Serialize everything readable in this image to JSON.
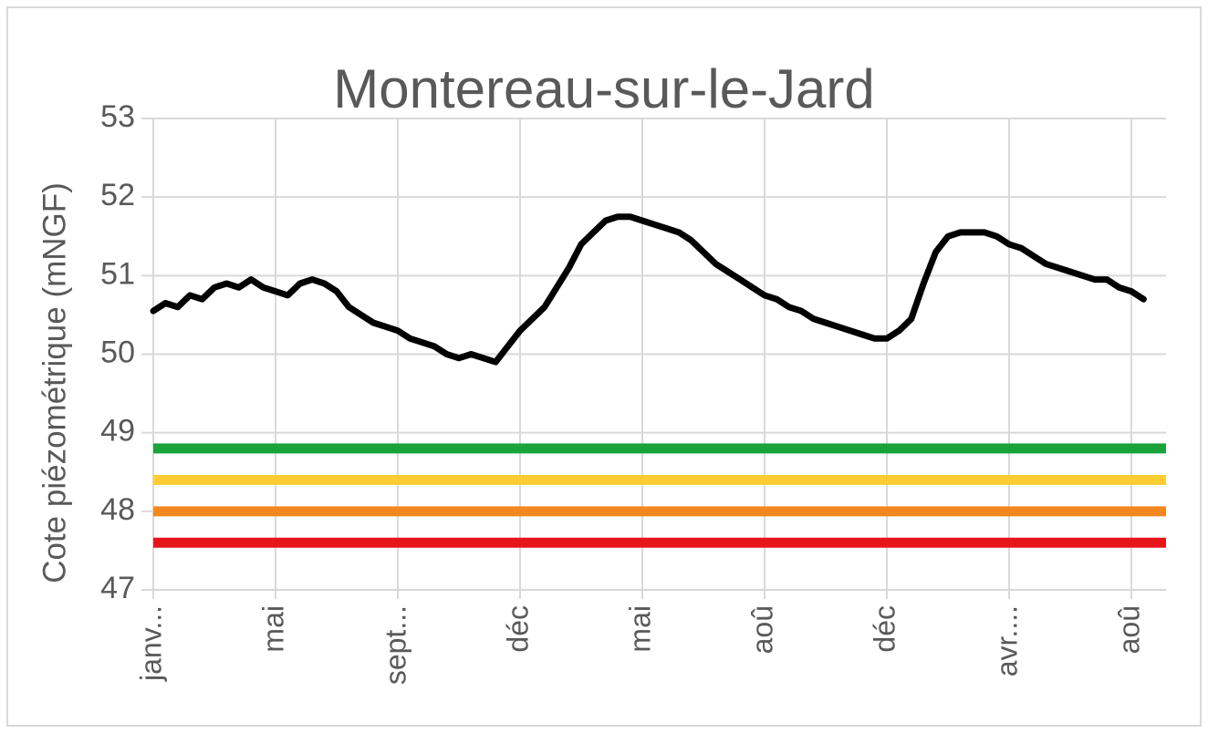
{
  "chart_data": {
    "type": "line",
    "title": "Montereau-sur-le-Jard",
    "ylabel": "Cote piézométrique (mNGF)",
    "categories": [
      "janv...",
      null,
      null,
      null,
      null,
      null,
      null,
      null,
      null,
      null,
      "mai",
      null,
      null,
      null,
      null,
      null,
      null,
      null,
      null,
      null,
      "sept...",
      null,
      null,
      null,
      null,
      null,
      null,
      null,
      null,
      null,
      "déc",
      null,
      null,
      null,
      null,
      null,
      null,
      null,
      null,
      null,
      "mai",
      null,
      null,
      null,
      null,
      null,
      null,
      null,
      null,
      null,
      "aoû",
      null,
      null,
      null,
      null,
      null,
      null,
      null,
      null,
      null,
      "déc",
      null,
      null,
      null,
      null,
      null,
      null,
      null,
      null,
      null,
      "avr....",
      null,
      null,
      null,
      null,
      null,
      null,
      null,
      null,
      null,
      "aoû",
      null
    ],
    "series": [
      {
        "color": "#000000",
        "values": [
          50.55,
          50.65,
          50.6,
          50.75,
          50.7,
          50.85,
          50.9,
          50.85,
          50.95,
          50.85,
          50.8,
          50.75,
          50.9,
          50.95,
          50.9,
          50.8,
          50.6,
          50.5,
          50.4,
          50.35,
          50.3,
          50.2,
          50.15,
          50.1,
          50.0,
          49.95,
          50.0,
          49.95,
          49.9,
          50.1,
          50.3,
          50.45,
          50.6,
          50.85,
          51.1,
          51.4,
          51.55,
          51.7,
          51.75,
          51.75,
          51.7,
          51.65,
          51.6,
          51.55,
          51.45,
          51.3,
          51.15,
          51.05,
          50.95,
          50.85,
          50.75,
          50.7,
          50.6,
          50.55,
          50.45,
          50.4,
          50.35,
          50.3,
          50.25,
          50.2,
          50.2,
          50.3,
          50.45,
          50.9,
          51.3,
          51.5,
          51.55,
          51.55,
          51.55,
          51.5,
          51.4,
          51.35,
          51.25,
          51.15,
          51.1,
          51.05,
          51.0,
          50.95,
          50.95,
          50.85,
          50.8,
          50.7
        ]
      }
    ],
    "threshold_lines": [
      {
        "value": 48.8,
        "color": "#1aa33a"
      },
      {
        "value": 48.4,
        "color": "#ffcc33"
      },
      {
        "value": 48.0,
        "color": "#f5871f"
      },
      {
        "value": 47.6,
        "color": "#e8141c"
      }
    ],
    "ylim": [
      47,
      53
    ],
    "yticks": [
      47,
      48,
      49,
      50,
      51,
      52,
      53
    ],
    "grid": true
  }
}
